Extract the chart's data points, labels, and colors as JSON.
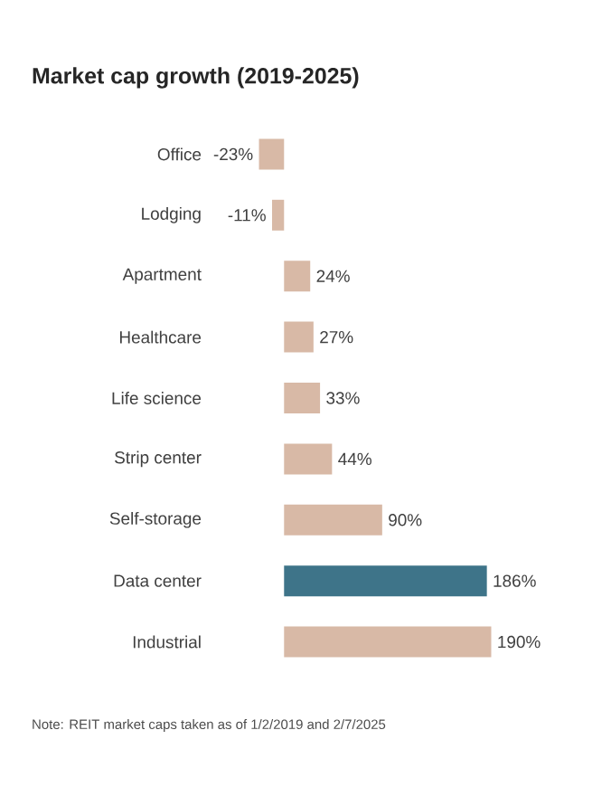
{
  "chart_data": {
    "type": "bar",
    "orientation": "horizontal",
    "title": "Market cap growth (2019-2025)",
    "categories": [
      "Office",
      "Lodging",
      "Apartment",
      "Healthcare",
      "Life science",
      "Strip center",
      "Self-storage",
      "Data center",
      "Industrial"
    ],
    "values": [
      -23,
      -11,
      24,
      27,
      33,
      44,
      90,
      186,
      190
    ],
    "value_labels": [
      "-23%",
      "-11%",
      "24%",
      "27%",
      "33%",
      "44%",
      "90%",
      "186%",
      "190%"
    ],
    "colors": [
      "#d8b9a6",
      "#d8b9a6",
      "#d8b9a6",
      "#d8b9a6",
      "#d8b9a6",
      "#d8b9a6",
      "#d8b9a6",
      "#3e7489",
      "#d8b9a6"
    ],
    "annotations": [
      "Note: REIT market caps taken as of 1/2/2019 and 2/7/2025"
    ]
  }
}
